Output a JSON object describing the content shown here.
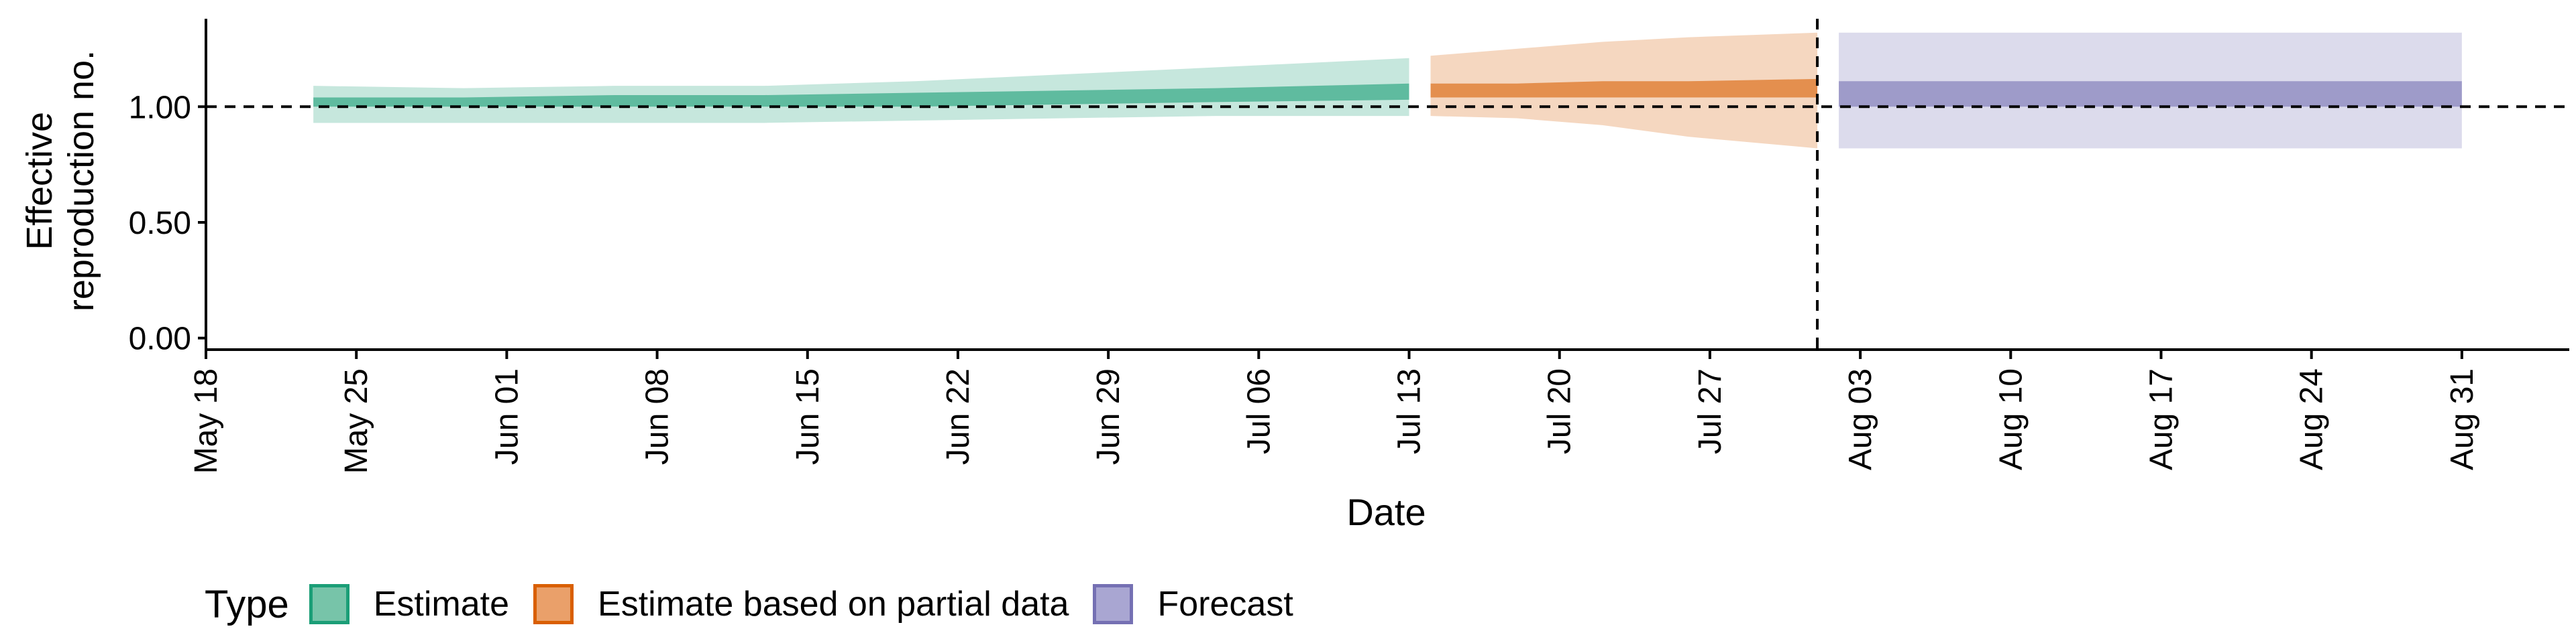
{
  "chart_data": {
    "type": "area",
    "xlabel": "Date",
    "ylabel_lines": [
      "Effective",
      "reproduction no."
    ],
    "x_start": "2020-05-18",
    "x_end": "2020-09-05",
    "x_ticks": [
      "May 18",
      "May 25",
      "Jun 01",
      "Jun 08",
      "Jun 15",
      "Jun 22",
      "Jun 29",
      "Jul 06",
      "Jul 13",
      "Jul 20",
      "Jul 27",
      "Aug 03",
      "Aug 10",
      "Aug 17",
      "Aug 24",
      "Aug 31"
    ],
    "ylim": [
      -0.05,
      1.38
    ],
    "y_ticks": [
      "0.00",
      "0.50",
      "1.00"
    ],
    "reference_line_y": 1.0,
    "vline_date": "2020-08-01",
    "legend": {
      "title": "Type",
      "entries": [
        {
          "label": "Estimate",
          "fill": "#77c4a9",
          "border": "#1b9e77"
        },
        {
          "label": "Estimate based on partial data",
          "fill": "#eaa06a",
          "border": "#d95f02"
        },
        {
          "label": "Forecast",
          "fill": "#a9a6d2",
          "border": "#7570b3"
        }
      ]
    },
    "series": [
      {
        "name": "Estimate",
        "color": "#1b9e77",
        "dates": [
          "2020-05-23",
          "2020-05-30",
          "2020-06-06",
          "2020-06-13",
          "2020-06-20",
          "2020-06-27",
          "2020-07-04",
          "2020-07-13"
        ],
        "lower90": [
          0.93,
          0.93,
          0.93,
          0.93,
          0.94,
          0.95,
          0.96,
          0.96
        ],
        "upper90": [
          1.09,
          1.08,
          1.09,
          1.09,
          1.11,
          1.14,
          1.17,
          1.21
        ],
        "lower50": [
          1.0,
          1.0,
          1.0,
          1.0,
          1.0,
          1.01,
          1.02,
          1.03
        ],
        "upper50": [
          1.04,
          1.04,
          1.05,
          1.05,
          1.06,
          1.07,
          1.08,
          1.1
        ]
      },
      {
        "name": "Estimate based on partial data",
        "color": "#d95f02",
        "dates": [
          "2020-07-14",
          "2020-07-18",
          "2020-07-22",
          "2020-07-26",
          "2020-08-01"
        ],
        "lower90": [
          0.96,
          0.95,
          0.92,
          0.87,
          0.82
        ],
        "upper90": [
          1.22,
          1.25,
          1.28,
          1.3,
          1.32
        ],
        "lower50": [
          1.04,
          1.04,
          1.04,
          1.04,
          1.04
        ],
        "upper50": [
          1.1,
          1.1,
          1.11,
          1.11,
          1.12
        ]
      },
      {
        "name": "Forecast",
        "color": "#7570b3",
        "dates": [
          "2020-08-02",
          "2020-08-31"
        ],
        "lower90": [
          0.82,
          0.82
        ],
        "upper90": [
          1.32,
          1.32
        ],
        "lower50": [
          1.0,
          1.0
        ],
        "upper50": [
          1.11,
          1.11
        ]
      }
    ]
  }
}
